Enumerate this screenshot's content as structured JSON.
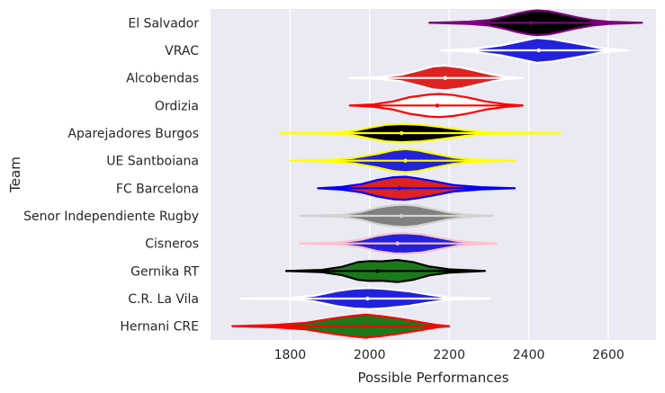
{
  "chart_data": {
    "type": "violin",
    "orientation": "horizontal",
    "xlabel": "Possible Performances",
    "ylabel": "Team",
    "xlim": [
      1600,
      2720
    ],
    "xticks": [
      1800,
      2000,
      2200,
      2400,
      2600
    ],
    "grid": true,
    "legend": "none",
    "background": "#eaeaf2",
    "series": [
      {
        "name": "El Salvador",
        "fill": "#000000",
        "edge": "#800080",
        "min": 2150,
        "max": 2685,
        "median": 2405,
        "profile": [
          [
            2150,
            0.0
          ],
          [
            2250,
            0.04
          ],
          [
            2300,
            0.1
          ],
          [
            2340,
            0.22
          ],
          [
            2370,
            0.33
          ],
          [
            2400,
            0.42
          ],
          [
            2420,
            0.45
          ],
          [
            2450,
            0.42
          ],
          [
            2480,
            0.33
          ],
          [
            2520,
            0.2
          ],
          [
            2560,
            0.1
          ],
          [
            2600,
            0.04
          ],
          [
            2685,
            0.0
          ]
        ]
      },
      {
        "name": "VRAC",
        "fill": "#2222dd",
        "edge": "#ffffff",
        "min": 2180,
        "max": 2650,
        "median": 2425,
        "profile": [
          [
            2180,
            0.0
          ],
          [
            2260,
            0.05
          ],
          [
            2330,
            0.18
          ],
          [
            2380,
            0.33
          ],
          [
            2420,
            0.45
          ],
          [
            2460,
            0.4
          ],
          [
            2500,
            0.3
          ],
          [
            2540,
            0.2
          ],
          [
            2580,
            0.08
          ],
          [
            2650,
            0.0
          ]
        ]
      },
      {
        "name": "Alcobendas",
        "fill": "#dd2222",
        "edge": "#ffffff",
        "min": 1950,
        "max": 2385,
        "median": 2190,
        "profile": [
          [
            1950,
            0.0
          ],
          [
            2020,
            0.03
          ],
          [
            2080,
            0.12
          ],
          [
            2130,
            0.3
          ],
          [
            2160,
            0.42
          ],
          [
            2190,
            0.45
          ],
          [
            2230,
            0.38
          ],
          [
            2270,
            0.25
          ],
          [
            2310,
            0.12
          ],
          [
            2345,
            0.04
          ],
          [
            2385,
            0.0
          ]
        ]
      },
      {
        "name": "Ordizia",
        "fill": "#ffffff",
        "edge": "#ff0000",
        "min": 1950,
        "max": 2385,
        "median": 2170,
        "profile": [
          [
            1950,
            0.0
          ],
          [
            2010,
            0.04
          ],
          [
            2060,
            0.15
          ],
          [
            2100,
            0.3
          ],
          [
            2150,
            0.4
          ],
          [
            2175,
            0.42
          ],
          [
            2210,
            0.38
          ],
          [
            2250,
            0.28
          ],
          [
            2290,
            0.15
          ],
          [
            2340,
            0.05
          ],
          [
            2385,
            0.0
          ]
        ]
      },
      {
        "name": "Aparejadores Burgos",
        "fill": "#000000",
        "edge": "#ffff00",
        "min": 1775,
        "max": 2480,
        "median": 2080,
        "profile": [
          [
            1775,
            0.0
          ],
          [
            1900,
            0.02
          ],
          [
            1960,
            0.08
          ],
          [
            2000,
            0.2
          ],
          [
            2040,
            0.3
          ],
          [
            2080,
            0.33
          ],
          [
            2130,
            0.3
          ],
          [
            2180,
            0.22
          ],
          [
            2240,
            0.1
          ],
          [
            2300,
            0.03
          ],
          [
            2480,
            0.0
          ]
        ]
      },
      {
        "name": "UE Santboiana",
        "fill": "#2222dd",
        "edge": "#ffff00",
        "min": 1800,
        "max": 2365,
        "median": 2090,
        "profile": [
          [
            1800,
            0.0
          ],
          [
            1900,
            0.03
          ],
          [
            1960,
            0.1
          ],
          [
            2020,
            0.25
          ],
          [
            2060,
            0.38
          ],
          [
            2090,
            0.42
          ],
          [
            2120,
            0.38
          ],
          [
            2160,
            0.26
          ],
          [
            2210,
            0.12
          ],
          [
            2260,
            0.04
          ],
          [
            2365,
            0.0
          ]
        ]
      },
      {
        "name": "FC Barcelona",
        "fill": "#dd2222",
        "edge": "#0000ff",
        "min": 1870,
        "max": 2365,
        "median": 2075,
        "profile": [
          [
            1870,
            0.0
          ],
          [
            1930,
            0.05
          ],
          [
            1980,
            0.15
          ],
          [
            2020,
            0.3
          ],
          [
            2060,
            0.4
          ],
          [
            2090,
            0.42
          ],
          [
            2120,
            0.36
          ],
          [
            2160,
            0.26
          ],
          [
            2210,
            0.12
          ],
          [
            2280,
            0.04
          ],
          [
            2365,
            0.0
          ]
        ]
      },
      {
        "name": "Senor Independiente Rugby",
        "fill": "#808080",
        "edge": "#d3d3d3",
        "min": 1825,
        "max": 2310,
        "median": 2080,
        "profile": [
          [
            1825,
            0.0
          ],
          [
            1930,
            0.04
          ],
          [
            1980,
            0.15
          ],
          [
            2020,
            0.3
          ],
          [
            2060,
            0.38
          ],
          [
            2090,
            0.4
          ],
          [
            2120,
            0.36
          ],
          [
            2160,
            0.24
          ],
          [
            2200,
            0.12
          ],
          [
            2250,
            0.04
          ],
          [
            2310,
            0.0
          ]
        ]
      },
      {
        "name": "Cisneros",
        "fill": "#2222dd",
        "edge": "#ffc0cb",
        "min": 1825,
        "max": 2320,
        "median": 2070,
        "profile": [
          [
            1825,
            0.0
          ],
          [
            1920,
            0.03
          ],
          [
            1980,
            0.14
          ],
          [
            2020,
            0.28
          ],
          [
            2060,
            0.36
          ],
          [
            2090,
            0.37
          ],
          [
            2130,
            0.33
          ],
          [
            2170,
            0.22
          ],
          [
            2220,
            0.09
          ],
          [
            2270,
            0.03
          ],
          [
            2320,
            0.0
          ]
        ]
      },
      {
        "name": "Gernika RT",
        "fill": "#1a7a1a",
        "edge": "#000000",
        "min": 1790,
        "max": 2290,
        "median": 2020,
        "profile": [
          [
            1790,
            0.0
          ],
          [
            1880,
            0.04
          ],
          [
            1930,
            0.15
          ],
          [
            1970,
            0.32
          ],
          [
            2000,
            0.36
          ],
          [
            2030,
            0.35
          ],
          [
            2070,
            0.4
          ],
          [
            2110,
            0.32
          ],
          [
            2150,
            0.16
          ],
          [
            2200,
            0.06
          ],
          [
            2290,
            0.0
          ]
        ]
      },
      {
        "name": "C.R. La Vila",
        "fill": "#2222dd",
        "edge": "#ffffff",
        "min": 1675,
        "max": 2300,
        "median": 1995,
        "profile": [
          [
            1675,
            0.0
          ],
          [
            1800,
            0.02
          ],
          [
            1860,
            0.1
          ],
          [
            1920,
            0.28
          ],
          [
            1960,
            0.36
          ],
          [
            2000,
            0.38
          ],
          [
            2040,
            0.35
          ],
          [
            2100,
            0.26
          ],
          [
            2150,
            0.14
          ],
          [
            2200,
            0.04
          ],
          [
            2300,
            0.0
          ]
        ]
      },
      {
        "name": "Hernani CRE",
        "fill": "#1a7a1a",
        "edge": "#ff0000",
        "min": 1655,
        "max": 2200,
        "median": 1990,
        "profile": [
          [
            1655,
            0.0
          ],
          [
            1760,
            0.04
          ],
          [
            1840,
            0.12
          ],
          [
            1900,
            0.26
          ],
          [
            1950,
            0.36
          ],
          [
            1990,
            0.42
          ],
          [
            2030,
            0.36
          ],
          [
            2080,
            0.26
          ],
          [
            2130,
            0.14
          ],
          [
            2170,
            0.04
          ],
          [
            2200,
            0.0
          ]
        ]
      }
    ]
  }
}
